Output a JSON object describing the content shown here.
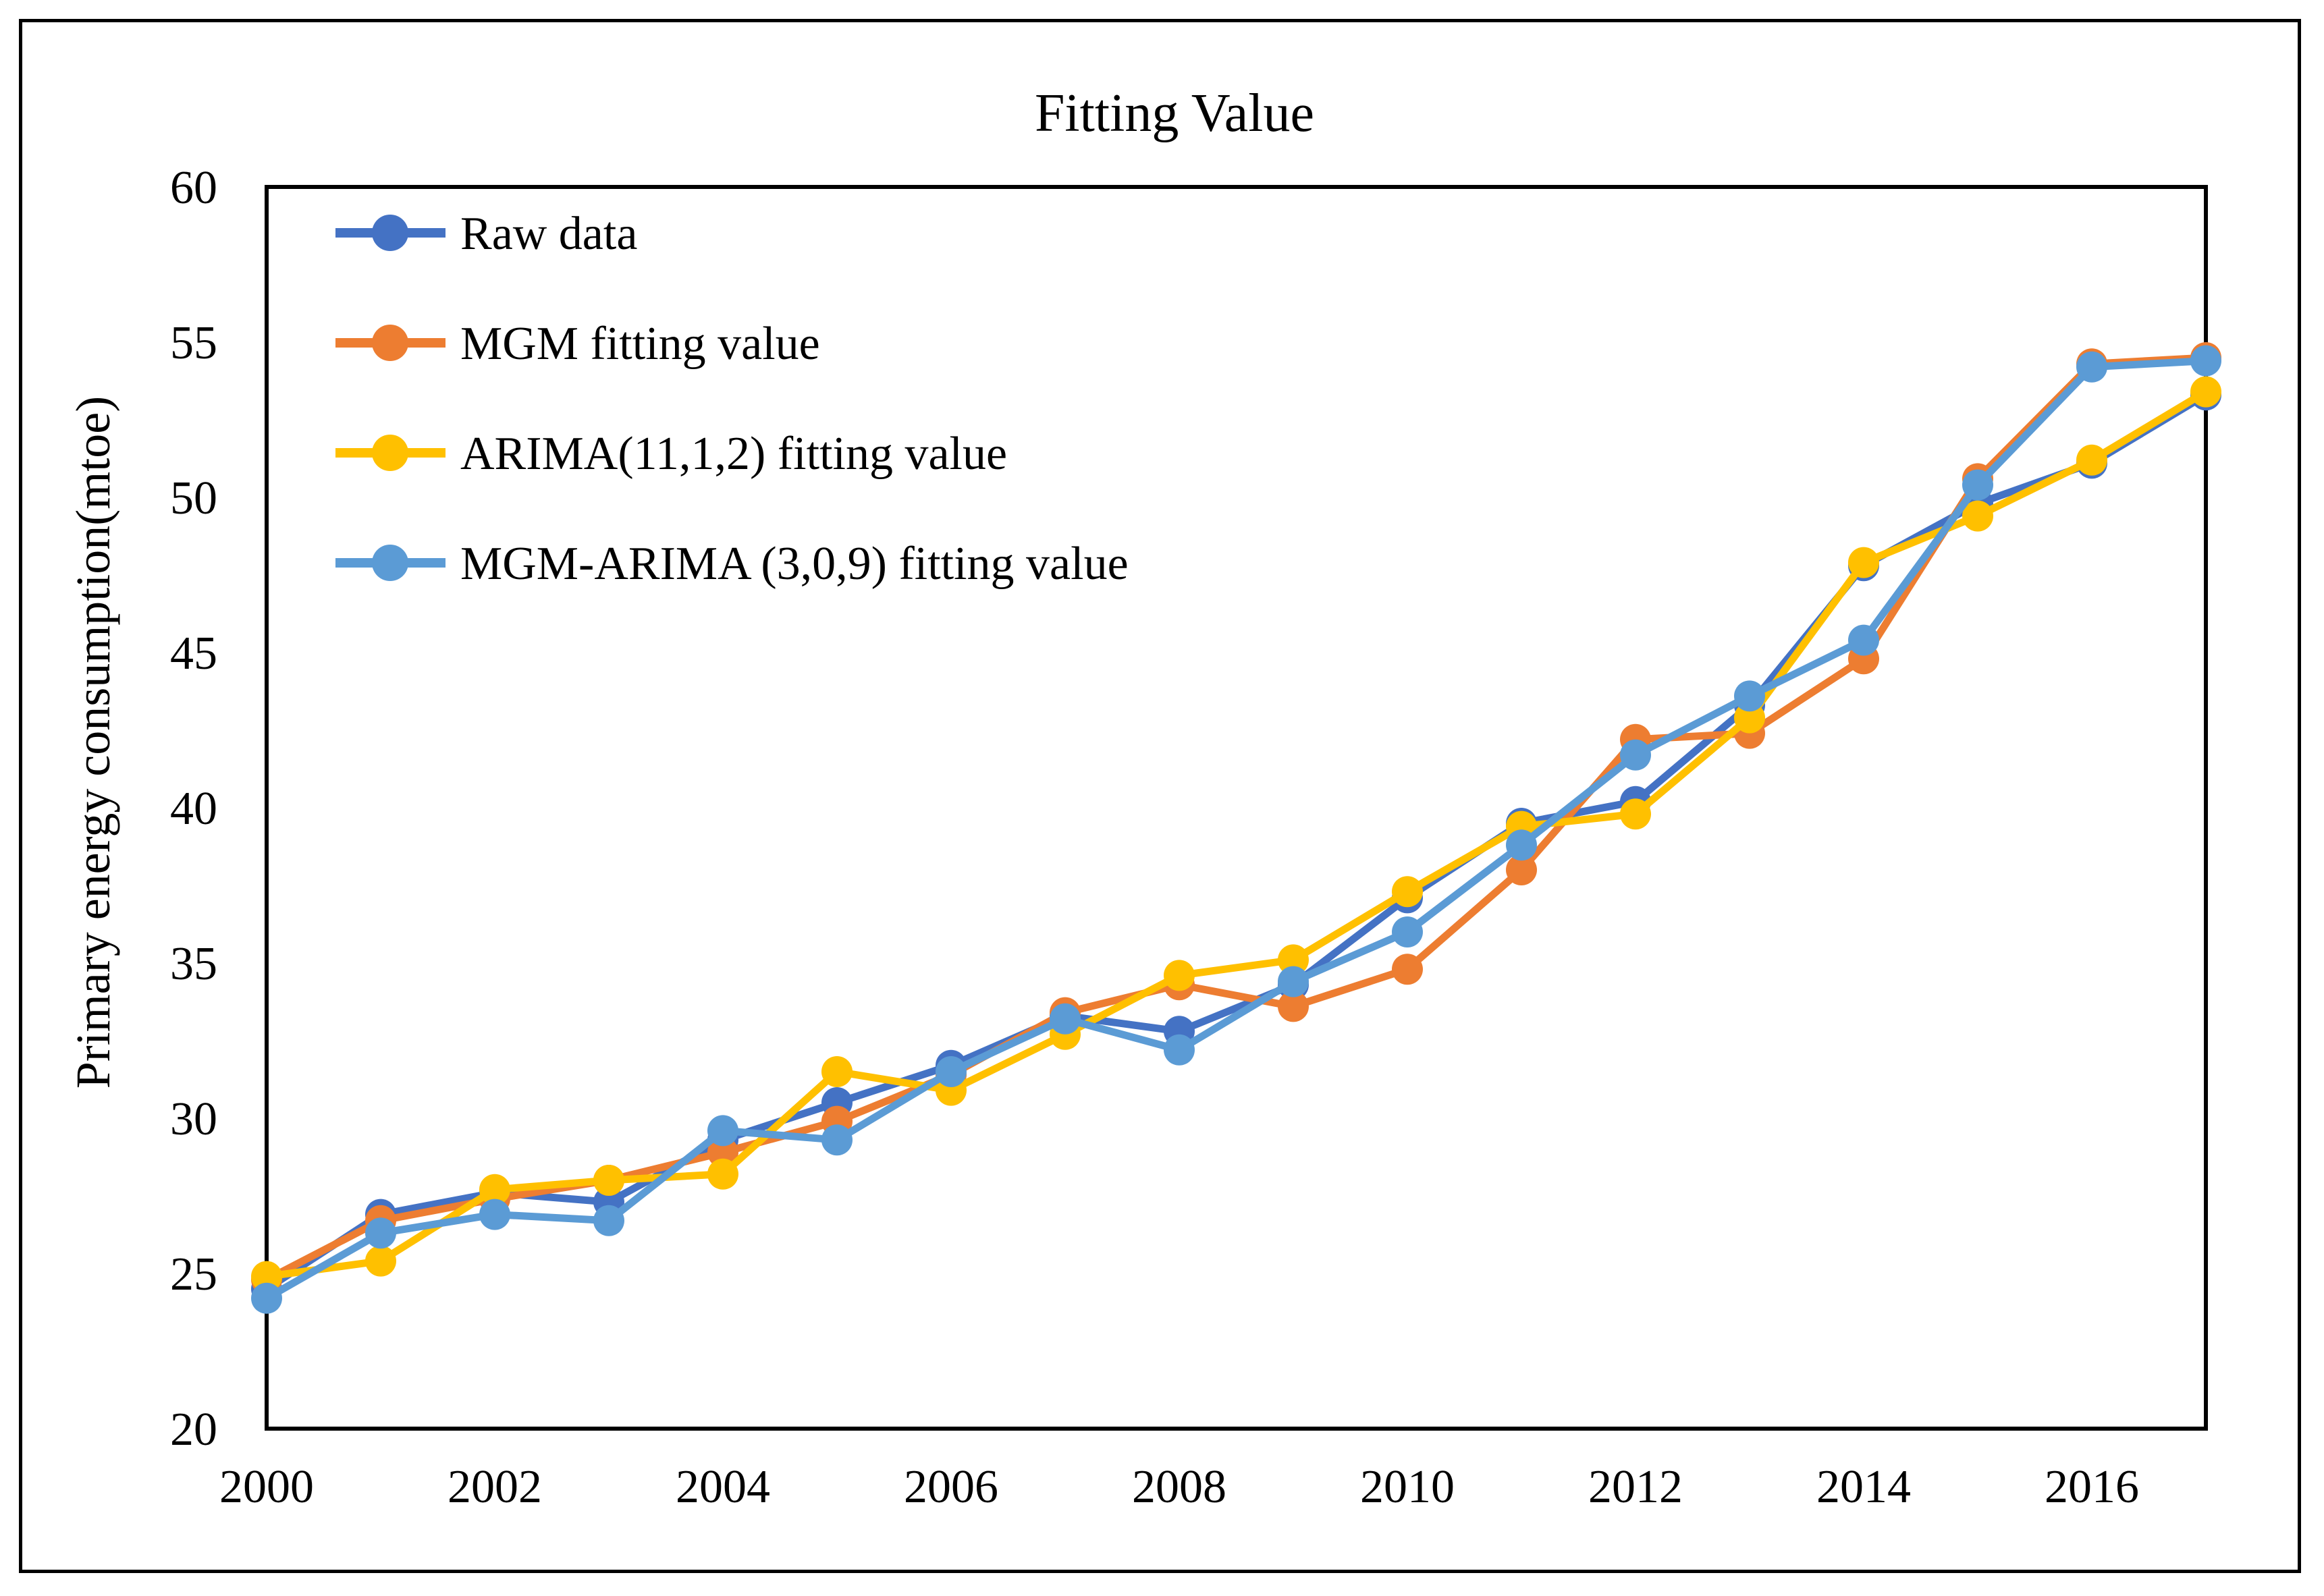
{
  "figure": {
    "background": "#ffffff",
    "border_color": "#000000"
  },
  "chart_data": {
    "type": "line",
    "title": "Fitting Value",
    "xlabel": "",
    "ylabel": "Primary energy consumption(mtoe)",
    "x": [
      2000,
      2001,
      2002,
      2003,
      2004,
      2005,
      2006,
      2007,
      2008,
      2009,
      2010,
      2011,
      2012,
      2013,
      2014,
      2015,
      2016,
      2017
    ],
    "xtick_labels": [
      "2000",
      "2002",
      "2004",
      "2006",
      "2008",
      "2010",
      "2012",
      "2014",
      "2016"
    ],
    "ylim": [
      20,
      60
    ],
    "yticks": [
      20,
      25,
      30,
      35,
      40,
      45,
      50,
      55,
      60
    ],
    "grid": false,
    "legend_position": "top-left-inside",
    "marker": "circle",
    "series": [
      {
        "name": "Raw data",
        "color": "#4472C4",
        "values": [
          24.5,
          26.9,
          27.6,
          27.3,
          29.3,
          30.5,
          31.7,
          33.3,
          32.8,
          34.3,
          37.1,
          39.5,
          40.2,
          43.3,
          47.8,
          49.8,
          51.1,
          53.3
        ]
      },
      {
        "name": "MGM fitting value",
        "color": "#ED7D31",
        "values": [
          24.8,
          26.7,
          27.4,
          28.0,
          28.9,
          29.9,
          31.4,
          33.4,
          34.3,
          33.6,
          34.8,
          38.0,
          42.2,
          42.4,
          44.8,
          50.6,
          54.3,
          54.5
        ]
      },
      {
        "name": "ARIMA(11,1,2) fitting value",
        "color": "#FFC000",
        "values": [
          24.9,
          25.4,
          27.7,
          28.0,
          28.2,
          31.5,
          30.9,
          32.7,
          34.6,
          35.1,
          37.3,
          39.4,
          39.8,
          42.9,
          47.9,
          49.4,
          51.2,
          53.4
        ]
      },
      {
        "name": "MGM-ARIMA (3,0,9) fitting value",
        "color": "#5B9BD5",
        "values": [
          24.2,
          26.3,
          26.9,
          26.7,
          29.6,
          29.3,
          31.5,
          33.2,
          32.2,
          34.4,
          36.0,
          38.8,
          41.7,
          43.6,
          45.4,
          50.4,
          54.2,
          54.4
        ]
      }
    ]
  }
}
